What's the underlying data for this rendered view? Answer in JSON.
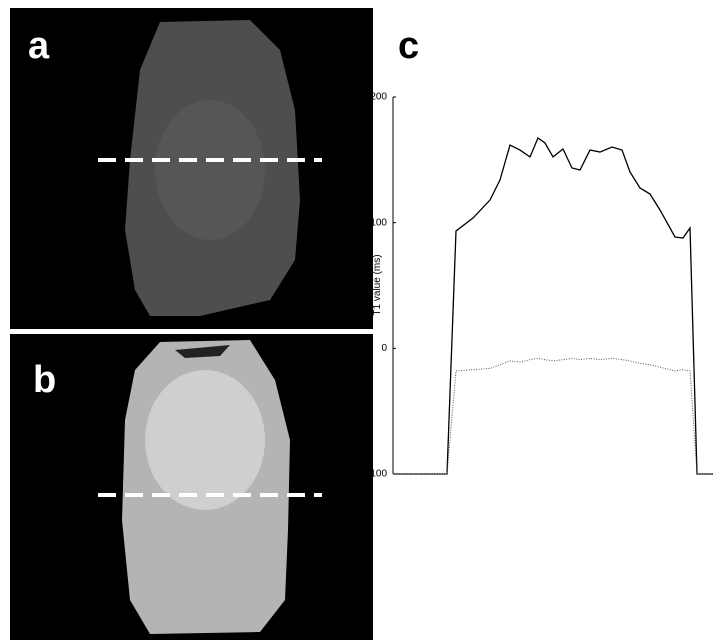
{
  "panel_labels": [
    "a",
    "b",
    "c"
  ],
  "chart_data": {
    "type": "line",
    "y_label": "T1 value (ms)",
    "x": [
      0,
      54,
      63,
      80,
      97,
      107,
      117,
      127,
      137,
      145,
      152,
      160,
      170,
      179,
      187,
      197,
      207,
      219,
      229,
      237,
      247,
      257,
      267,
      282,
      290,
      297,
      304,
      320
    ],
    "xlim": [
      0,
      320
    ],
    "ylim": [
      -100,
      200
    ],
    "yticks": [
      -100,
      0,
      100,
      200
    ],
    "series": [
      {
        "color": "#000000",
        "style": "solid",
        "values": [
          -100,
          -100,
          93.4,
          103.7,
          118,
          134,
          161.8,
          157.8,
          152.3,
          167.4,
          163.4,
          152.3,
          158.6,
          143.5,
          141.9,
          157.8,
          156.2,
          160.2,
          157.8,
          140.3,
          127.6,
          122.8,
          110.1,
          88.6,
          87.8,
          95.8,
          -100,
          -100
        ]
      },
      {
        "color": "#555555",
        "style": "dotted",
        "values": [
          -100,
          -100,
          -18,
          -17,
          -16,
          -13,
          -10,
          -11,
          -9,
          -8,
          -9,
          -10,
          -9,
          -8,
          -9,
          -8,
          -9,
          -8,
          -9,
          -10,
          -12,
          -13,
          -15,
          -18,
          -17,
          -18,
          -100,
          -100
        ]
      }
    ]
  }
}
